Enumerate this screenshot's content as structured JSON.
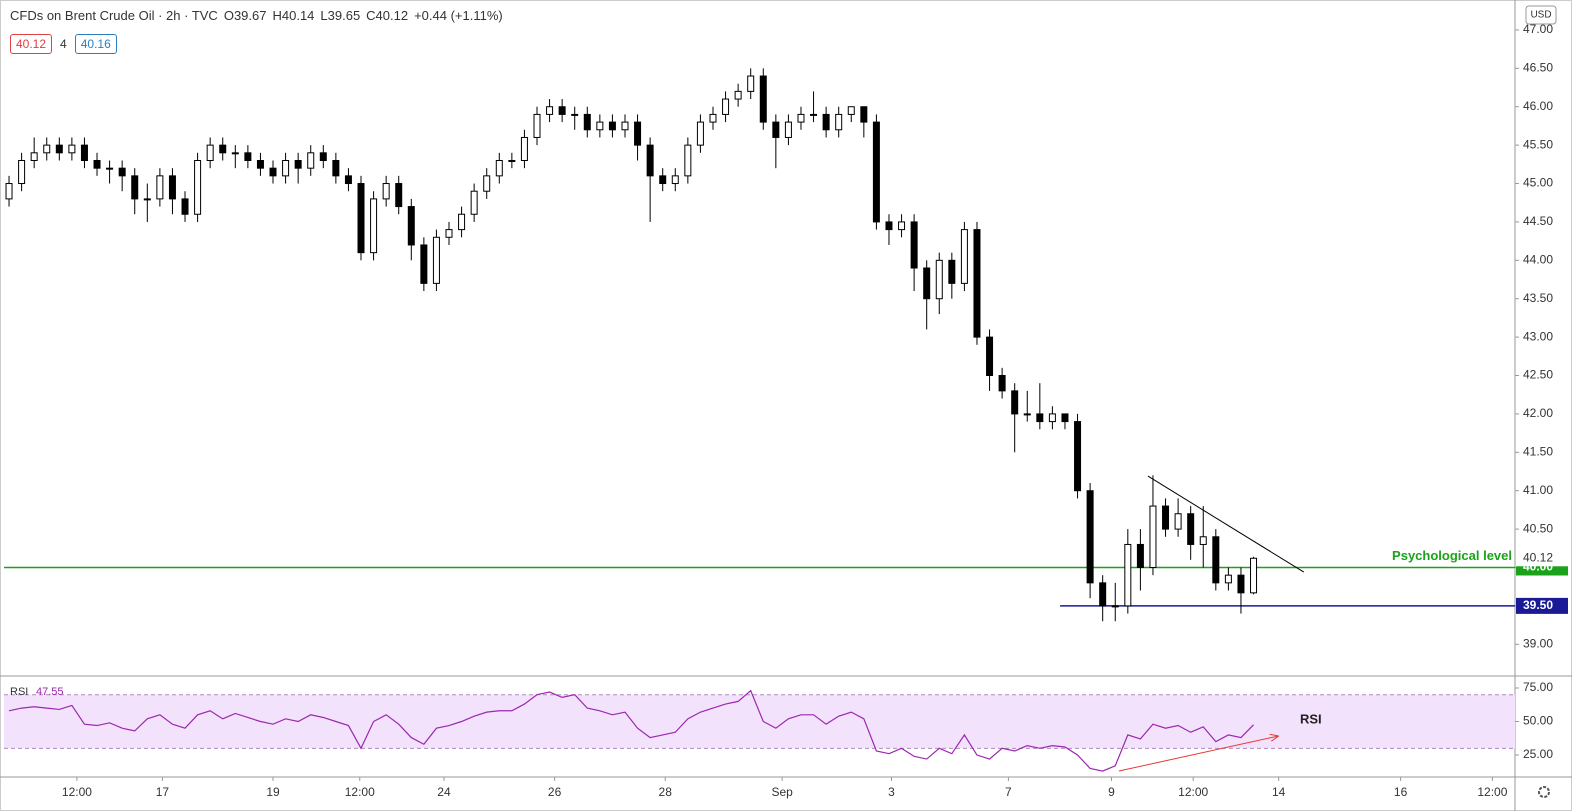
{
  "chart_data": {
    "type": "candlestick",
    "title": "CFDs on Brent Crude Oil · 2h · TVC",
    "readout": [
      "O39.67",
      "H40.14",
      "L39.65",
      "C40.12",
      "+0.44 (+1.11%)"
    ],
    "quote": {
      "bid": 40.12,
      "spread": 4,
      "ask": 40.16
    },
    "currency": "USD",
    "x": [
      0,
      1,
      2,
      3,
      4,
      5,
      6,
      7,
      8,
      9,
      10,
      11,
      12,
      13,
      14,
      15,
      16,
      17,
      18,
      19,
      20,
      21,
      22,
      23,
      24,
      25,
      26,
      27,
      28,
      29,
      30,
      31,
      32,
      33,
      34,
      35,
      36,
      37,
      38,
      39,
      40,
      41,
      42,
      43,
      44,
      45,
      46,
      47,
      48,
      49,
      50,
      51,
      52,
      53,
      54,
      55,
      56,
      57,
      58,
      59,
      60,
      61,
      62,
      63,
      64,
      65,
      66,
      67,
      68,
      69,
      70,
      71,
      72,
      73,
      74,
      75,
      76,
      77,
      78,
      79,
      80,
      81,
      82,
      83,
      84,
      85,
      86,
      87,
      88,
      89,
      90,
      91,
      92,
      93,
      94,
      95,
      96,
      97,
      98,
      99
    ],
    "open": [
      44.8,
      45.0,
      45.3,
      45.4,
      45.5,
      45.4,
      45.5,
      45.3,
      45.2,
      45.2,
      45.1,
      44.8,
      44.8,
      45.1,
      44.8,
      44.6,
      45.3,
      45.5,
      45.4,
      45.4,
      45.3,
      45.2,
      45.1,
      45.3,
      45.2,
      45.4,
      45.3,
      45.1,
      45.0,
      44.1,
      44.8,
      45.0,
      44.7,
      44.2,
      43.7,
      44.3,
      44.4,
      44.6,
      44.9,
      45.1,
      45.3,
      45.3,
      45.6,
      45.9,
      46.0,
      45.9,
      45.9,
      45.7,
      45.8,
      45.7,
      45.8,
      45.5,
      45.1,
      45.0,
      45.1,
      45.5,
      45.8,
      45.9,
      46.1,
      46.2,
      46.4,
      45.8,
      45.6,
      45.8,
      45.9,
      45.9,
      45.7,
      45.9,
      46.0,
      45.8,
      44.5,
      44.4,
      44.5,
      43.9,
      43.5,
      44.0,
      43.7,
      44.4,
      43.0,
      42.5,
      42.3,
      42.0,
      42.0,
      41.9,
      42.0,
      41.9,
      41.0,
      39.8,
      39.5,
      39.5,
      40.3,
      40.0,
      40.8,
      40.5,
      40.7,
      40.3,
      40.4,
      39.8,
      39.9,
      39.67
    ],
    "high": [
      45.1,
      45.4,
      45.6,
      45.6,
      45.6,
      45.6,
      45.6,
      45.4,
      45.3,
      45.3,
      45.2,
      45.0,
      45.2,
      45.2,
      44.9,
      45.4,
      45.6,
      45.6,
      45.5,
      45.5,
      45.4,
      45.3,
      45.4,
      45.4,
      45.5,
      45.5,
      45.4,
      45.2,
      45.1,
      44.9,
      45.1,
      45.1,
      44.8,
      44.3,
      44.4,
      44.5,
      44.7,
      45.0,
      45.2,
      45.4,
      45.4,
      45.7,
      46.0,
      46.1,
      46.1,
      46.0,
      46.0,
      45.9,
      45.9,
      45.9,
      45.9,
      45.6,
      45.2,
      45.2,
      45.6,
      45.9,
      46.0,
      46.2,
      46.3,
      46.5,
      46.5,
      45.9,
      45.9,
      46.0,
      46.2,
      46.0,
      46.0,
      46.0,
      46.0,
      45.9,
      44.6,
      44.6,
      44.6,
      44.0,
      44.1,
      44.1,
      44.5,
      44.5,
      43.1,
      42.6,
      42.4,
      42.3,
      42.4,
      42.1,
      42.0,
      42.0,
      41.1,
      39.9,
      39.8,
      40.5,
      40.5,
      41.2,
      40.9,
      40.9,
      40.8,
      40.8,
      40.5,
      40.0,
      40.0,
      40.14
    ],
    "low": [
      44.7,
      44.9,
      45.2,
      45.3,
      45.3,
      45.3,
      45.2,
      45.1,
      45.0,
      44.9,
      44.6,
      44.5,
      44.7,
      44.6,
      44.5,
      44.5,
      45.2,
      45.3,
      45.2,
      45.2,
      45.1,
      45.0,
      45.0,
      45.0,
      45.1,
      45.2,
      45.0,
      44.9,
      44.0,
      44.0,
      44.7,
      44.6,
      44.0,
      43.6,
      43.6,
      44.2,
      44.3,
      44.5,
      44.8,
      45.0,
      45.2,
      45.2,
      45.5,
      45.8,
      45.8,
      45.7,
      45.6,
      45.6,
      45.6,
      45.6,
      45.3,
      44.5,
      44.9,
      44.9,
      45.0,
      45.4,
      45.7,
      45.8,
      46.0,
      46.1,
      45.7,
      45.2,
      45.5,
      45.7,
      45.8,
      45.6,
      45.6,
      45.8,
      45.6,
      44.4,
      44.2,
      44.3,
      43.6,
      43.1,
      43.3,
      43.5,
      43.6,
      42.9,
      42.3,
      42.2,
      41.5,
      41.9,
      41.8,
      41.8,
      41.8,
      40.9,
      39.6,
      39.3,
      39.3,
      39.4,
      39.7,
      39.9,
      40.4,
      40.4,
      40.1,
      40.0,
      39.7,
      39.7,
      39.4,
      39.65
    ],
    "close": [
      45.0,
      45.3,
      45.4,
      45.5,
      45.4,
      45.5,
      45.3,
      45.2,
      45.2,
      45.1,
      44.8,
      44.8,
      45.1,
      44.8,
      44.6,
      45.3,
      45.5,
      45.4,
      45.4,
      45.3,
      45.2,
      45.1,
      45.3,
      45.2,
      45.4,
      45.3,
      45.1,
      45.0,
      44.1,
      44.8,
      45.0,
      44.7,
      44.2,
      43.7,
      44.3,
      44.4,
      44.6,
      44.9,
      45.1,
      45.3,
      45.3,
      45.6,
      45.9,
      46.0,
      45.9,
      45.9,
      45.7,
      45.8,
      45.7,
      45.8,
      45.5,
      45.1,
      45.0,
      45.1,
      45.5,
      45.8,
      45.9,
      46.1,
      46.2,
      46.4,
      45.8,
      45.6,
      45.8,
      45.9,
      45.9,
      45.7,
      45.9,
      46.0,
      45.8,
      44.5,
      44.4,
      44.5,
      43.9,
      43.5,
      44.0,
      43.7,
      44.4,
      43.0,
      42.5,
      42.3,
      42.0,
      42.0,
      41.9,
      42.0,
      41.9,
      41.0,
      39.8,
      39.5,
      39.5,
      40.3,
      40.0,
      40.8,
      40.5,
      40.7,
      40.3,
      40.4,
      39.8,
      39.9,
      39.67,
      40.12
    ],
    "up_color": "#ffffff",
    "down_color": "#000000",
    "xlim": [
      -0.4,
      119.8
    ],
    "xticks": [
      {
        "value": 5.4,
        "label": "12:00"
      },
      {
        "value": 12.2,
        "label": "17"
      },
      {
        "value": 21.0,
        "label": "19"
      },
      {
        "value": 27.9,
        "label": "12:00"
      },
      {
        "value": 34.6,
        "label": "24"
      },
      {
        "value": 43.4,
        "label": "26"
      },
      {
        "value": 52.2,
        "label": "28"
      },
      {
        "value": 61.5,
        "label": "Sep"
      },
      {
        "value": 70.2,
        "label": "3"
      },
      {
        "value": 79.5,
        "label": "7"
      },
      {
        "value": 87.7,
        "label": "9"
      },
      {
        "value": 94.2,
        "label": "12:00"
      },
      {
        "value": 101.0,
        "label": "14"
      },
      {
        "value": 110.7,
        "label": "16"
      },
      {
        "value": 118.0,
        "label": "12:00"
      }
    ],
    "ylim": [
      38.6,
      47.39
    ],
    "yticks": [
      {
        "value": 39,
        "label": "39.00"
      },
      {
        "value": 39.5,
        "label": "39.50"
      },
      {
        "value": 40,
        "label": "40.00"
      },
      {
        "value": 40.5,
        "label": "40.50"
      },
      {
        "value": 41,
        "label": "41.00"
      },
      {
        "value": 41.5,
        "label": "41.50"
      },
      {
        "value": 42,
        "label": "42.00"
      },
      {
        "value": 42.5,
        "label": "42.50"
      },
      {
        "value": 43,
        "label": "43.00"
      },
      {
        "value": 43.5,
        "label": "43.50"
      },
      {
        "value": 44,
        "label": "44.00"
      },
      {
        "value": 44.5,
        "label": "44.50"
      },
      {
        "value": 45,
        "label": "45.00"
      },
      {
        "value": 45.5,
        "label": "45.50"
      },
      {
        "value": 46,
        "label": "46.00"
      },
      {
        "value": 46.5,
        "label": "46.50"
      },
      {
        "value": 47,
        "label": "47.00"
      }
    ],
    "grid": false,
    "last_price": 40.12,
    "levels": [
      {
        "value": 40,
        "label": "40.00",
        "color": "#1aa31a",
        "annotation": "Psychological level"
      },
      {
        "value": 39.5,
        "label": "39.50",
        "color": "#1a1a96"
      }
    ],
    "trendline": {
      "x": [
        90.6,
        103.0
      ],
      "y": [
        41.19,
        39.94
      ],
      "color": "#000000"
    },
    "rsi": {
      "type": "line",
      "label": "RSI",
      "value": 47.55,
      "color": "#9c27b0",
      "values": [
        58,
        60,
        61,
        60,
        59,
        62,
        48,
        47,
        49,
        45,
        43,
        52,
        55,
        48,
        45,
        55,
        58,
        52,
        56,
        53,
        50,
        48,
        52,
        50,
        55,
        53,
        50,
        47,
        30,
        50,
        55,
        48,
        38,
        33,
        45,
        47,
        50,
        54,
        57,
        58,
        58,
        63,
        70,
        72,
        68,
        70,
        60,
        58,
        55,
        57,
        45,
        38,
        40,
        42,
        52,
        57,
        60,
        63,
        65,
        73,
        50,
        45,
        52,
        55,
        55,
        48,
        54,
        57,
        52,
        28,
        26,
        30,
        24,
        22,
        30,
        26,
        40,
        25,
        22,
        30,
        28,
        32,
        30,
        32,
        31,
        25,
        15,
        13,
        17,
        40,
        37,
        48,
        45,
        47,
        42,
        46,
        35,
        40,
        38,
        47.55
      ],
      "ylim": [
        8.6,
        83.2
      ],
      "yticks": [
        {
          "value": 25,
          "label": "25.00"
        },
        {
          "value": 50,
          "label": "50.00"
        },
        {
          "value": 75,
          "label": "75.00"
        }
      ],
      "band": [
        30,
        70
      ],
      "band_color": "#f3e2fb",
      "annotation": "RSI",
      "arrow": {
        "x": [
          88.3,
          101.0
        ],
        "y": [
          13.1,
          39.2
        ],
        "color": "#e53935"
      }
    }
  }
}
